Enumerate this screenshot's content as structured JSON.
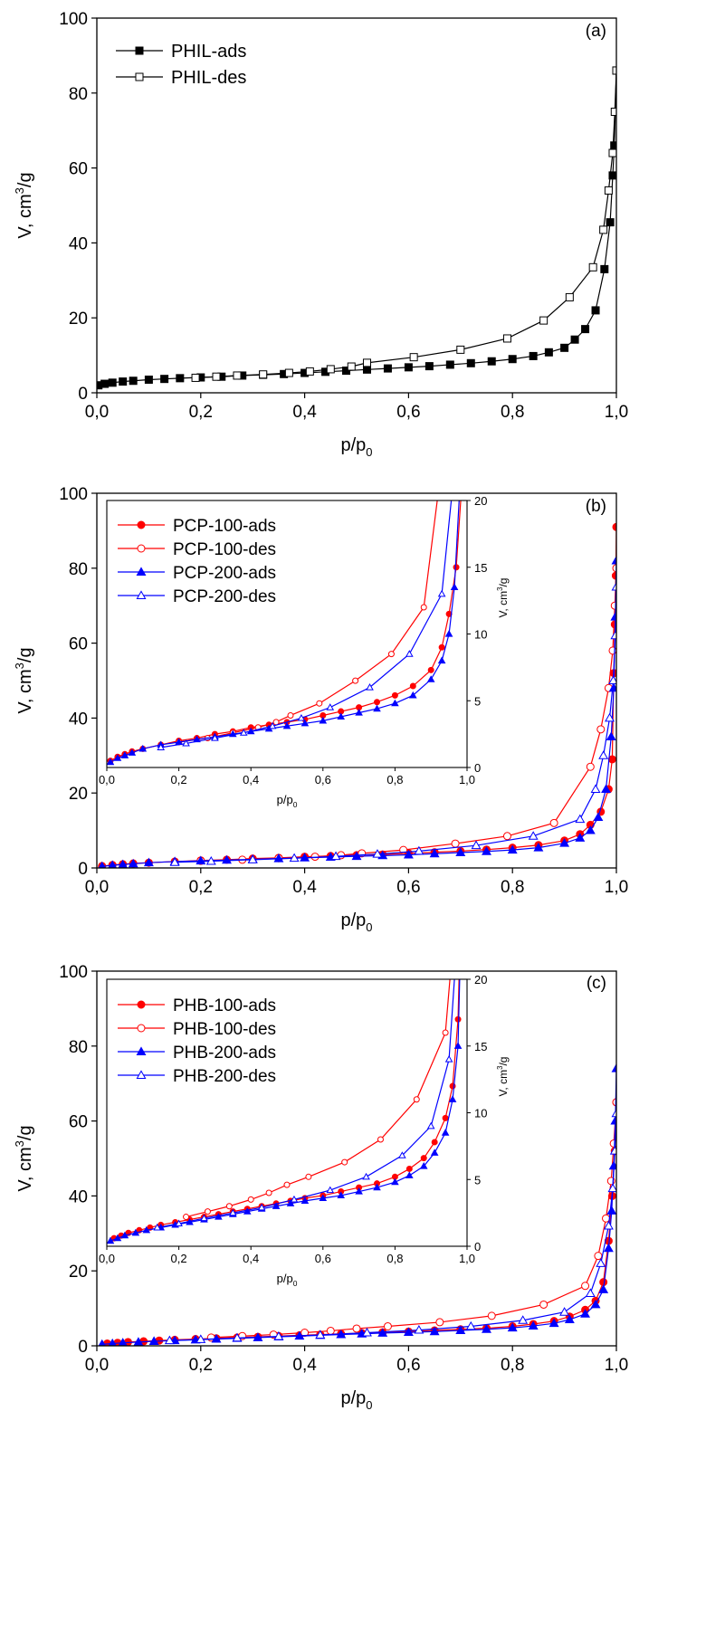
{
  "chart_data": [
    {
      "type": "line",
      "panel_label": "(a)",
      "xlabel": "p/p0",
      "ylabel": "V, cm3/g",
      "xlim": [
        0,
        1
      ],
      "ylim": [
        0,
        100
      ],
      "xticks": [
        "0,0",
        "0,2",
        "0,4",
        "0,6",
        "0,8",
        "1,0"
      ],
      "yticks": [
        "0",
        "20",
        "40",
        "60",
        "80",
        "100"
      ],
      "legend_position": "top-left",
      "series": [
        {
          "name": "PHIL-ads",
          "color": "#000000",
          "marker": "square-filled",
          "x": [
            0.003,
            0.015,
            0.03,
            0.05,
            0.07,
            0.1,
            0.13,
            0.16,
            0.2,
            0.24,
            0.28,
            0.32,
            0.36,
            0.4,
            0.44,
            0.48,
            0.52,
            0.56,
            0.6,
            0.64,
            0.68,
            0.72,
            0.76,
            0.8,
            0.84,
            0.87,
            0.9,
            0.92,
            0.94,
            0.96,
            0.977,
            0.988,
            0.993,
            0.996,
            0.998,
            1.0
          ],
          "y": [
            2.0,
            2.4,
            2.7,
            3.0,
            3.2,
            3.5,
            3.7,
            3.9,
            4.1,
            4.3,
            4.6,
            4.8,
            5.0,
            5.3,
            5.6,
            5.9,
            6.2,
            6.5,
            6.8,
            7.1,
            7.5,
            7.9,
            8.4,
            9.0,
            9.8,
            10.8,
            12.0,
            14.2,
            17.0,
            22.0,
            33.0,
            45.5,
            58.0,
            66.0,
            75.0,
            86.0
          ]
        },
        {
          "name": "PHIL-des",
          "color": "#000000",
          "marker": "square-open",
          "x": [
            1.0,
            0.997,
            0.993,
            0.985,
            0.975,
            0.955,
            0.91,
            0.86,
            0.79,
            0.7,
            0.61,
            0.52,
            0.49,
            0.45,
            0.41,
            0.37,
            0.32,
            0.27,
            0.23,
            0.19
          ],
          "y": [
            86.0,
            75.0,
            64.0,
            54.0,
            43.5,
            33.5,
            25.5,
            19.3,
            14.5,
            11.5,
            9.5,
            8.0,
            7.0,
            6.3,
            5.7,
            5.3,
            4.9,
            4.6,
            4.3,
            4.0
          ]
        }
      ]
    },
    {
      "type": "line",
      "panel_label": "(b)",
      "xlabel": "p/p0",
      "ylabel": "V, cm3/g",
      "xlim": [
        0,
        1
      ],
      "ylim": [
        0,
        100
      ],
      "xticks": [
        "0,0",
        "0,2",
        "0,4",
        "0,6",
        "0,8",
        "1,0"
      ],
      "yticks": [
        "0",
        "20",
        "40",
        "60",
        "80",
        "100"
      ],
      "series": [
        {
          "name": "PCP-100-ads",
          "color": "#ff0000",
          "marker": "circle-filled",
          "x": [
            0.01,
            0.03,
            0.05,
            0.07,
            0.1,
            0.15,
            0.2,
            0.25,
            0.3,
            0.35,
            0.4,
            0.45,
            0.5,
            0.55,
            0.6,
            0.65,
            0.7,
            0.75,
            0.8,
            0.85,
            0.9,
            0.93,
            0.95,
            0.97,
            0.985,
            0.992,
            0.995,
            0.997,
            0.999,
            1.0
          ],
          "y": [
            0.5,
            0.8,
            1.0,
            1.2,
            1.4,
            1.7,
            2.0,
            2.2,
            2.5,
            2.7,
            3.0,
            3.2,
            3.4,
            3.6,
            3.9,
            4.2,
            4.5,
            4.9,
            5.4,
            6.1,
            7.3,
            9.0,
            11.5,
            15.0,
            21.0,
            29.0,
            52.0,
            65.0,
            78.0,
            91.0
          ]
        },
        {
          "name": "PCP-100-des",
          "color": "#ff0000",
          "marker": "circle-open",
          "x": [
            1.0,
            0.997,
            0.993,
            0.985,
            0.97,
            0.95,
            0.88,
            0.79,
            0.69,
            0.59,
            0.51,
            0.47,
            0.42,
            0.35,
            0.28,
            0.2
          ],
          "y": [
            80.0,
            70.0,
            58.0,
            48.0,
            37.0,
            27.0,
            12.0,
            8.5,
            6.5,
            4.8,
            3.9,
            3.4,
            3.0,
            2.6,
            2.2,
            1.9
          ]
        },
        {
          "name": "PCP-200-ads",
          "color": "#0000ff",
          "marker": "triangle-filled",
          "x": [
            0.01,
            0.03,
            0.05,
            0.07,
            0.1,
            0.15,
            0.2,
            0.25,
            0.3,
            0.35,
            0.4,
            0.45,
            0.5,
            0.55,
            0.6,
            0.65,
            0.7,
            0.75,
            0.8,
            0.85,
            0.9,
            0.93,
            0.95,
            0.965,
            0.98,
            0.99,
            0.995,
            0.998,
            1.0
          ],
          "y": [
            0.4,
            0.7,
            0.9,
            1.1,
            1.4,
            1.7,
            1.9,
            2.1,
            2.3,
            2.5,
            2.7,
            2.9,
            3.1,
            3.3,
            3.5,
            3.8,
            4.1,
            4.4,
            4.8,
            5.4,
            6.6,
            8.0,
            10.0,
            13.5,
            21.0,
            35.0,
            48.0,
            67.0,
            82.0
          ]
        },
        {
          "name": "PCP-200-des",
          "color": "#0000ff",
          "marker": "triangle-open",
          "x": [
            1.0,
            0.998,
            0.994,
            0.987,
            0.975,
            0.96,
            0.93,
            0.84,
            0.73,
            0.62,
            0.54,
            0.46,
            0.38,
            0.3,
            0.22,
            0.15
          ],
          "y": [
            75.0,
            62.0,
            50.0,
            40.0,
            30.0,
            21.0,
            13.0,
            8.5,
            6.0,
            4.5,
            3.7,
            3.1,
            2.6,
            2.2,
            1.8,
            1.5
          ]
        }
      ],
      "inset": {
        "xlabel": "p/p0",
        "ylabel": "V, cm3/g",
        "xlim": [
          0,
          1
        ],
        "ylim": [
          0,
          20
        ],
        "xticks": [
          "0,0",
          "0,2",
          "0,4",
          "0,6",
          "0,8",
          "1,0"
        ],
        "yticks": [
          "0",
          "5",
          "10",
          "15",
          "20"
        ]
      }
    },
    {
      "type": "line",
      "panel_label": "(c)",
      "xlabel": "p/p0",
      "ylabel": "V, cm3/g",
      "xlim": [
        0,
        1
      ],
      "ylim": [
        0,
        100
      ],
      "xticks": [
        "0,0",
        "0,2",
        "0,4",
        "0,6",
        "0,8",
        "1,0"
      ],
      "yticks": [
        "0",
        "20",
        "40",
        "60",
        "80",
        "100"
      ],
      "series": [
        {
          "name": "PHB-100-ads",
          "color": "#ff0000",
          "marker": "circle-filled",
          "x": [
            0.02,
            0.04,
            0.06,
            0.09,
            0.12,
            0.15,
            0.19,
            0.23,
            0.27,
            0.31,
            0.35,
            0.39,
            0.43,
            0.47,
            0.51,
            0.55,
            0.6,
            0.65,
            0.7,
            0.75,
            0.8,
            0.84,
            0.88,
            0.91,
            0.94,
            0.96,
            0.975,
            0.985,
            0.992,
            0.997,
            1.0
          ],
          "y": [
            0.6,
            0.8,
            1.0,
            1.2,
            1.4,
            1.6,
            1.8,
            2.0,
            2.2,
            2.4,
            2.6,
            2.8,
            3.0,
            3.2,
            3.4,
            3.6,
            3.8,
            4.1,
            4.4,
            4.7,
            5.2,
            5.8,
            6.6,
            7.8,
            9.6,
            12.0,
            17.0,
            28.0,
            40.0,
            52.0,
            65.0
          ]
        },
        {
          "name": "PHB-100-des",
          "color": "#ff0000",
          "marker": "circle-open",
          "x": [
            1.0,
            0.995,
            0.99,
            0.98,
            0.965,
            0.94,
            0.86,
            0.76,
            0.66,
            0.56,
            0.5,
            0.45,
            0.4,
            0.34,
            0.28,
            0.22
          ],
          "y": [
            65.0,
            54.0,
            44.0,
            34.0,
            24.0,
            16.0,
            11.0,
            8.0,
            6.3,
            5.2,
            4.6,
            4.0,
            3.5,
            3.0,
            2.6,
            2.2
          ]
        },
        {
          "name": "PHB-200-ads",
          "color": "#0000ff",
          "marker": "triangle-filled",
          "x": [
            0.01,
            0.03,
            0.05,
            0.08,
            0.11,
            0.15,
            0.19,
            0.23,
            0.27,
            0.31,
            0.35,
            0.39,
            0.43,
            0.47,
            0.51,
            0.55,
            0.6,
            0.65,
            0.7,
            0.75,
            0.8,
            0.84,
            0.88,
            0.91,
            0.94,
            0.96,
            0.975,
            0.985,
            0.991,
            0.995,
            0.998,
            1.0
          ],
          "y": [
            0.4,
            0.6,
            0.8,
            1.0,
            1.2,
            1.4,
            1.6,
            1.8,
            2.0,
            2.2,
            2.4,
            2.6,
            2.8,
            3.0,
            3.2,
            3.4,
            3.6,
            3.8,
            4.1,
            4.4,
            4.8,
            5.3,
            6.0,
            7.0,
            8.5,
            11.0,
            15.0,
            26.0,
            36.0,
            48.0,
            60.0,
            74.0
          ]
        },
        {
          "name": "PHB-200-des",
          "color": "#0000ff",
          "marker": "triangle-open",
          "x": [
            1.0,
            0.997,
            0.993,
            0.985,
            0.97,
            0.95,
            0.9,
            0.82,
            0.72,
            0.62,
            0.52,
            0.43,
            0.35,
            0.27,
            0.2,
            0.14
          ],
          "y": [
            62.0,
            52.0,
            42.0,
            32.0,
            22.0,
            14.0,
            9.0,
            6.8,
            5.2,
            4.2,
            3.5,
            2.9,
            2.5,
            2.1,
            1.7,
            1.4
          ]
        }
      ],
      "inset": {
        "xlabel": "p/p0",
        "ylabel": "V, cm3/g",
        "xlim": [
          0,
          1
        ],
        "ylim": [
          0,
          20
        ],
        "xticks": [
          "0,0",
          "0,2",
          "0,4",
          "0,6",
          "0,8",
          "1,0"
        ],
        "yticks": [
          "0",
          "5",
          "10",
          "15",
          "20"
        ]
      }
    }
  ]
}
